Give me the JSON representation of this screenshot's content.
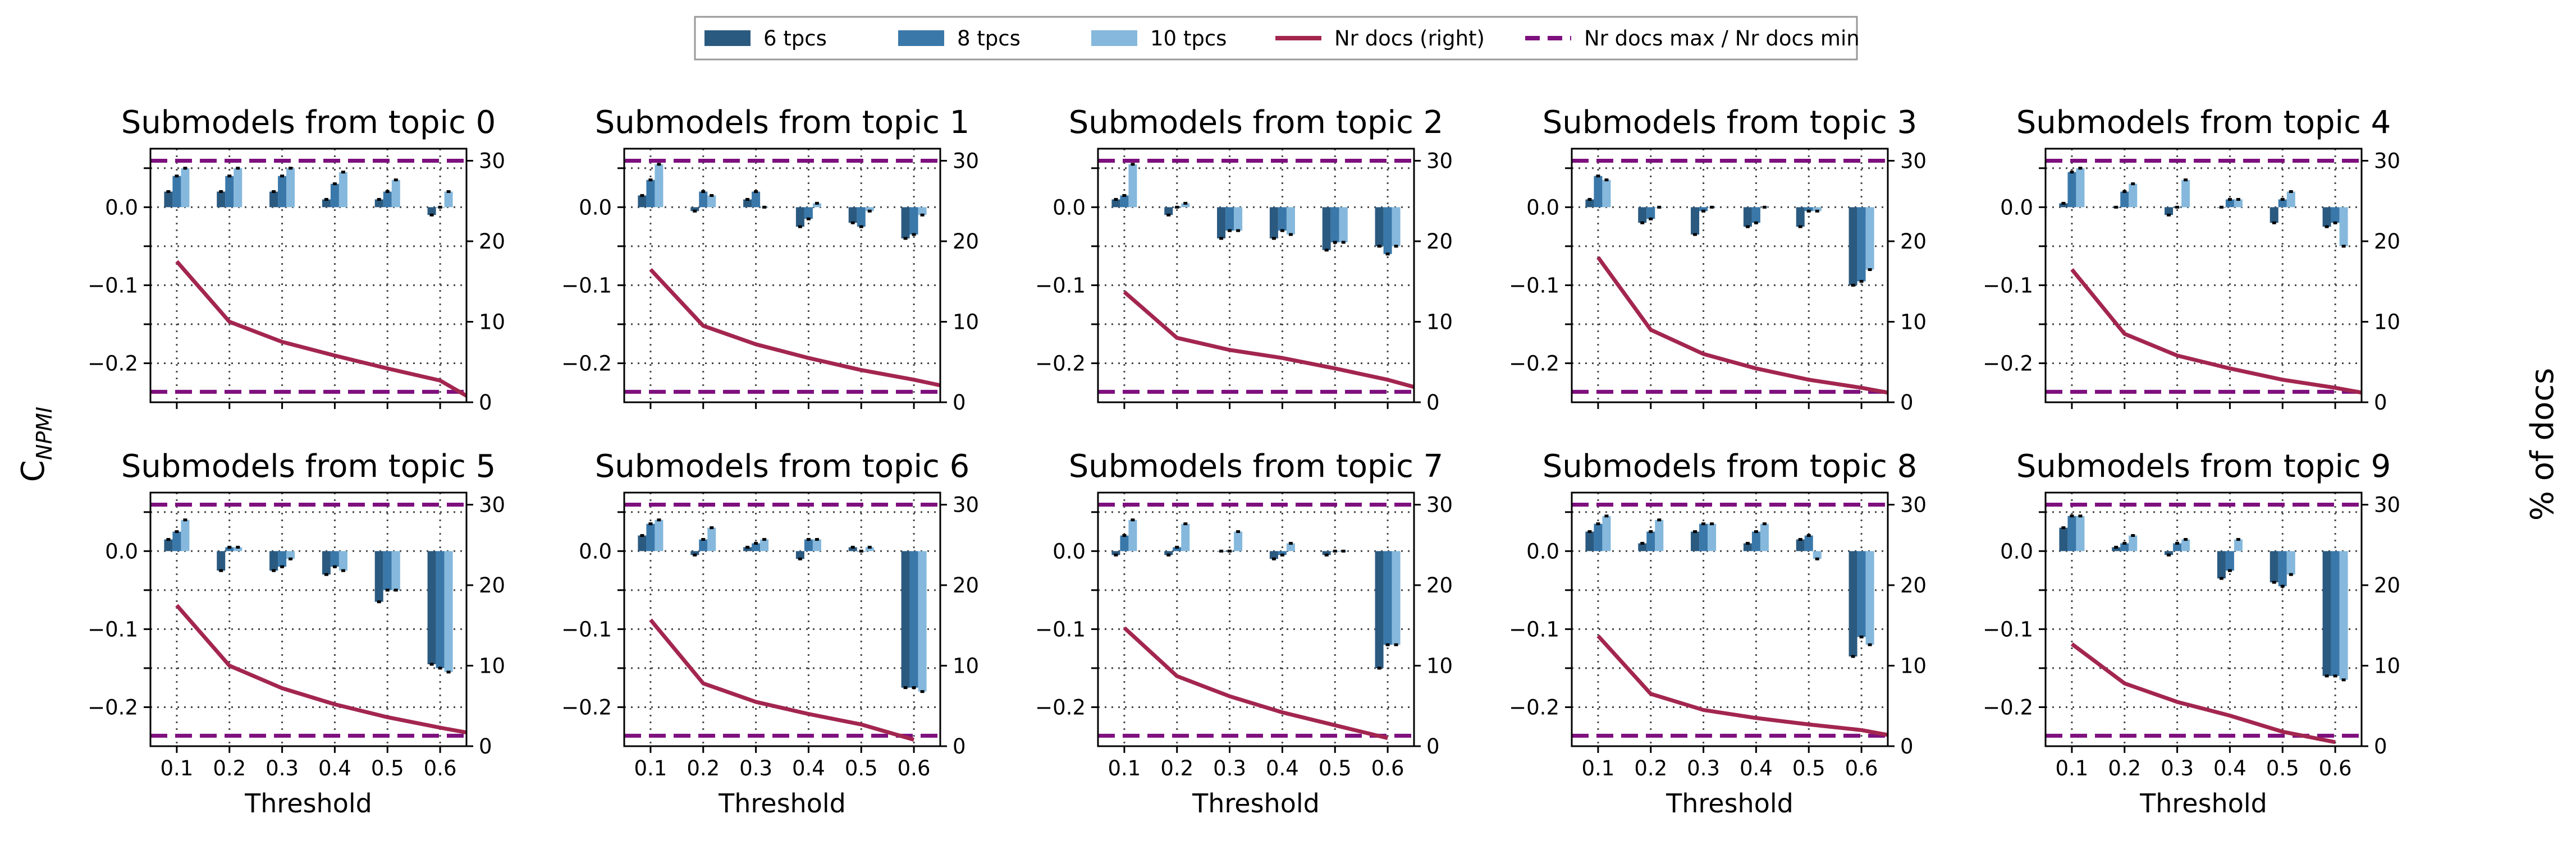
{
  "figure": {
    "ylabel_left": "C",
    "ylabel_left_sub": "NPMI",
    "ylabel_right": "% of docs",
    "xlabel": "Threshold"
  },
  "legend": {
    "placement": "top-center",
    "entries": [
      {
        "label": "6 tpcs",
        "kind": "bar",
        "color": "#2b5a80"
      },
      {
        "label": "8 tpcs",
        "kind": "bar",
        "color": "#3a78aa"
      },
      {
        "label": "10 tpcs",
        "kind": "bar",
        "color": "#85b8dc"
      },
      {
        "label": "Nr docs (right)",
        "kind": "line",
        "color": "#a3264f"
      },
      {
        "label": "Nr docs max / Nr docs min",
        "kind": "dashed",
        "color": "#7e0f7e"
      }
    ]
  },
  "chart_data": {
    "type": "bar",
    "layout": "2x5 grid of subplots",
    "bar_series_names": [
      "6 tpcs",
      "8 tpcs",
      "10 tpcs"
    ],
    "line_series_name": "Nr docs (right)",
    "x": [
      0.1,
      0.2,
      0.3,
      0.4,
      0.5,
      0.6
    ],
    "x_tick_labels": [
      "0.1",
      "0.2",
      "0.3",
      "0.4",
      "0.5",
      "0.6"
    ],
    "xlim": [
      0.05,
      0.65
    ],
    "ylim_left": [
      -0.25,
      0.075
    ],
    "yticks_left": [
      0.0,
      -0.1,
      -0.2
    ],
    "ytick_labels_left": [
      "0.0",
      "−0.1",
      "−0.2"
    ],
    "ylim_right": [
      0,
      31.5
    ],
    "yticks_right": [
      0,
      10,
      20,
      30
    ],
    "ytick_labels_right": [
      "0",
      "10",
      "20",
      "30"
    ],
    "grid": true,
    "colors": {
      "bar_6": "#2b5a80",
      "bar_8": "#3a78aa",
      "bar_10": "#85b8dc",
      "line": "#a3264f",
      "dashed": "#7e0f7e",
      "error": "#000000"
    },
    "subplots": [
      {
        "title": "Submodels from topic 0",
        "bars": [
          [
            0.02,
            0.02,
            0.02,
            0.01,
            0.01,
            -0.01
          ],
          [
            0.04,
            0.04,
            0.04,
            0.03,
            0.02,
            0.0
          ],
          [
            0.05,
            0.05,
            0.05,
            0.045,
            0.035,
            0.02
          ]
        ],
        "docs": [
          17.5,
          10,
          7.5,
          5.8,
          4.2,
          2.7,
          0.8
        ],
        "docs_x": [
          0.1,
          0.2,
          0.3,
          0.4,
          0.5,
          0.6,
          0.65
        ],
        "docs_max": 30,
        "docs_min": 1.3
      },
      {
        "title": "Submodels from topic 1",
        "bars": [
          [
            0.015,
            -0.005,
            0.01,
            -0.025,
            -0.02,
            -0.04
          ],
          [
            0.035,
            0.02,
            0.02,
            -0.015,
            -0.025,
            -0.035
          ],
          [
            0.055,
            0.015,
            0.0,
            0.005,
            -0.005,
            -0.01
          ]
        ],
        "docs": [
          16.5,
          9.5,
          7.2,
          5.5,
          4.0,
          2.8,
          2.1
        ],
        "docs_x": [
          0.1,
          0.2,
          0.3,
          0.4,
          0.5,
          0.6,
          0.65
        ],
        "docs_max": 30,
        "docs_min": 1.3
      },
      {
        "title": "Submodels from topic 2",
        "bars": [
          [
            0.01,
            -0.01,
            -0.04,
            -0.04,
            -0.055,
            -0.05
          ],
          [
            0.015,
            0.0,
            -0.03,
            -0.03,
            -0.045,
            -0.06
          ],
          [
            0.055,
            0.005,
            -0.03,
            -0.035,
            -0.045,
            -0.05
          ]
        ],
        "docs": [
          13.7,
          8,
          6.5,
          5.5,
          4.2,
          2.8,
          1.9
        ],
        "docs_x": [
          0.1,
          0.2,
          0.3,
          0.4,
          0.5,
          0.6,
          0.65
        ],
        "docs_max": 30,
        "docs_min": 1.3
      },
      {
        "title": "Submodels from topic 3",
        "bars": [
          [
            0.01,
            -0.02,
            -0.035,
            -0.025,
            -0.025,
            -0.1
          ],
          [
            0.04,
            -0.015,
            -0.005,
            -0.02,
            -0.005,
            -0.095
          ],
          [
            0.035,
            0.0,
            0.0,
            0.0,
            -0.005,
            -0.08
          ]
        ],
        "docs": [
          18,
          9,
          6,
          4.2,
          2.8,
          1.8,
          1.2
        ],
        "docs_x": [
          0.1,
          0.2,
          0.3,
          0.4,
          0.5,
          0.6,
          0.65
        ],
        "docs_max": 30,
        "docs_min": 1.3
      },
      {
        "title": "Submodels from topic 4",
        "bars": [
          [
            0.005,
            0.0,
            -0.01,
            0.0,
            -0.02,
            -0.025
          ],
          [
            0.045,
            0.02,
            0.0,
            0.01,
            0.01,
            -0.02
          ],
          [
            0.05,
            0.03,
            0.035,
            0.01,
            0.02,
            -0.05
          ]
        ],
        "docs": [
          16.5,
          8.5,
          5.8,
          4.2,
          2.8,
          1.8,
          1.2
        ],
        "docs_x": [
          0.1,
          0.2,
          0.3,
          0.4,
          0.5,
          0.6,
          0.65
        ],
        "docs_max": 30,
        "docs_min": 1.3
      },
      {
        "title": "Submodels from topic 5",
        "bars": [
          [
            0.015,
            -0.025,
            -0.025,
            -0.03,
            -0.065,
            -0.145
          ],
          [
            0.025,
            0.005,
            -0.02,
            -0.02,
            -0.05,
            -0.15
          ],
          [
            0.04,
            0.005,
            -0.01,
            -0.025,
            -0.05,
            -0.155
          ]
        ],
        "docs": [
          17.5,
          10,
          7.2,
          5.2,
          3.6,
          2.3,
          1.7
        ],
        "docs_x": [
          0.1,
          0.2,
          0.3,
          0.4,
          0.5,
          0.6,
          0.65
        ],
        "docs_max": 30,
        "docs_min": 1.3
      },
      {
        "title": "Submodels from topic 6",
        "bars": [
          [
            0.02,
            -0.005,
            0.005,
            -0.01,
            0.005,
            -0.175
          ],
          [
            0.035,
            0.015,
            0.01,
            0.015,
            0.0,
            -0.175
          ],
          [
            0.04,
            0.03,
            0.015,
            0.015,
            0.005,
            -0.18
          ]
        ],
        "docs": [
          15.7,
          7.8,
          5.5,
          4.0,
          2.7,
          0.8
        ],
        "docs_x": [
          0.1,
          0.2,
          0.3,
          0.4,
          0.5,
          0.6
        ],
        "docs_max": 30,
        "docs_min": 1.3
      },
      {
        "title": "Submodels from topic 7",
        "bars": [
          [
            -0.005,
            -0.005,
            0.0,
            -0.01,
            -0.005,
            -0.15
          ],
          [
            0.02,
            0.005,
            0.0,
            -0.005,
            0.0,
            -0.12
          ],
          [
            0.04,
            0.035,
            0.025,
            0.01,
            0.0,
            -0.12
          ]
        ],
        "docs": [
          14.7,
          8.7,
          6.2,
          4.2,
          2.6,
          1.0
        ],
        "docs_x": [
          0.1,
          0.2,
          0.3,
          0.4,
          0.5,
          0.6
        ],
        "docs_max": 30,
        "docs_min": 1.3
      },
      {
        "title": "Submodels from topic 8",
        "bars": [
          [
            0.025,
            0.01,
            0.025,
            0.01,
            0.015,
            -0.135
          ],
          [
            0.035,
            0.025,
            0.035,
            0.025,
            0.02,
            -0.11
          ],
          [
            0.045,
            0.04,
            0.035,
            0.035,
            -0.01,
            -0.12
          ]
        ],
        "docs": [
          13.7,
          6.5,
          4.5,
          3.5,
          2.7,
          2.0,
          1.4
        ],
        "docs_x": [
          0.1,
          0.2,
          0.3,
          0.4,
          0.5,
          0.6,
          0.65
        ],
        "docs_max": 30,
        "docs_min": 1.3
      },
      {
        "title": "Submodels from topic 9",
        "bars": [
          [
            0.03,
            0.005,
            -0.005,
            -0.035,
            -0.04,
            -0.16
          ],
          [
            0.045,
            0.01,
            0.01,
            -0.025,
            -0.045,
            -0.16
          ],
          [
            0.045,
            0.02,
            0.015,
            0.015,
            -0.03,
            -0.165
          ]
        ],
        "docs": [
          12.7,
          7.8,
          5.5,
          3.8,
          1.8,
          0.5
        ],
        "docs_x": [
          0.1,
          0.2,
          0.3,
          0.4,
          0.5,
          0.6
        ],
        "docs_max": 30,
        "docs_min": 1.3
      }
    ]
  }
}
